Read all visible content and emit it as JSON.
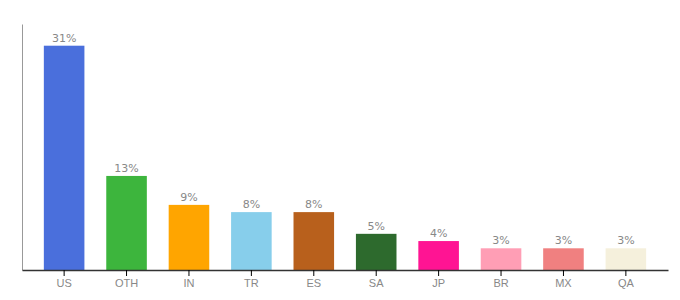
{
  "chart_data": {
    "type": "bar",
    "categories": [
      "US",
      "OTH",
      "IN",
      "TR",
      "ES",
      "SA",
      "JP",
      "BR",
      "MX",
      "QA"
    ],
    "values": [
      31,
      13,
      9,
      8,
      8,
      5,
      4,
      3,
      3,
      3
    ],
    "value_labels": [
      "31%",
      "13%",
      "9%",
      "8%",
      "8%",
      "5%",
      "4%",
      "3%",
      "3%",
      "3%"
    ],
    "colors": [
      "#4a6fdc",
      "#3db53d",
      "#ffa500",
      "#87ceeb",
      "#b8601c",
      "#2d6a2d",
      "#ff1493",
      "#ff9eb5",
      "#f08080",
      "#f5f0dc"
    ],
    "ylim": [
      0,
      34
    ],
    "yticks": [],
    "tick_labels": "x",
    "data_labels": true,
    "grid": false
  }
}
